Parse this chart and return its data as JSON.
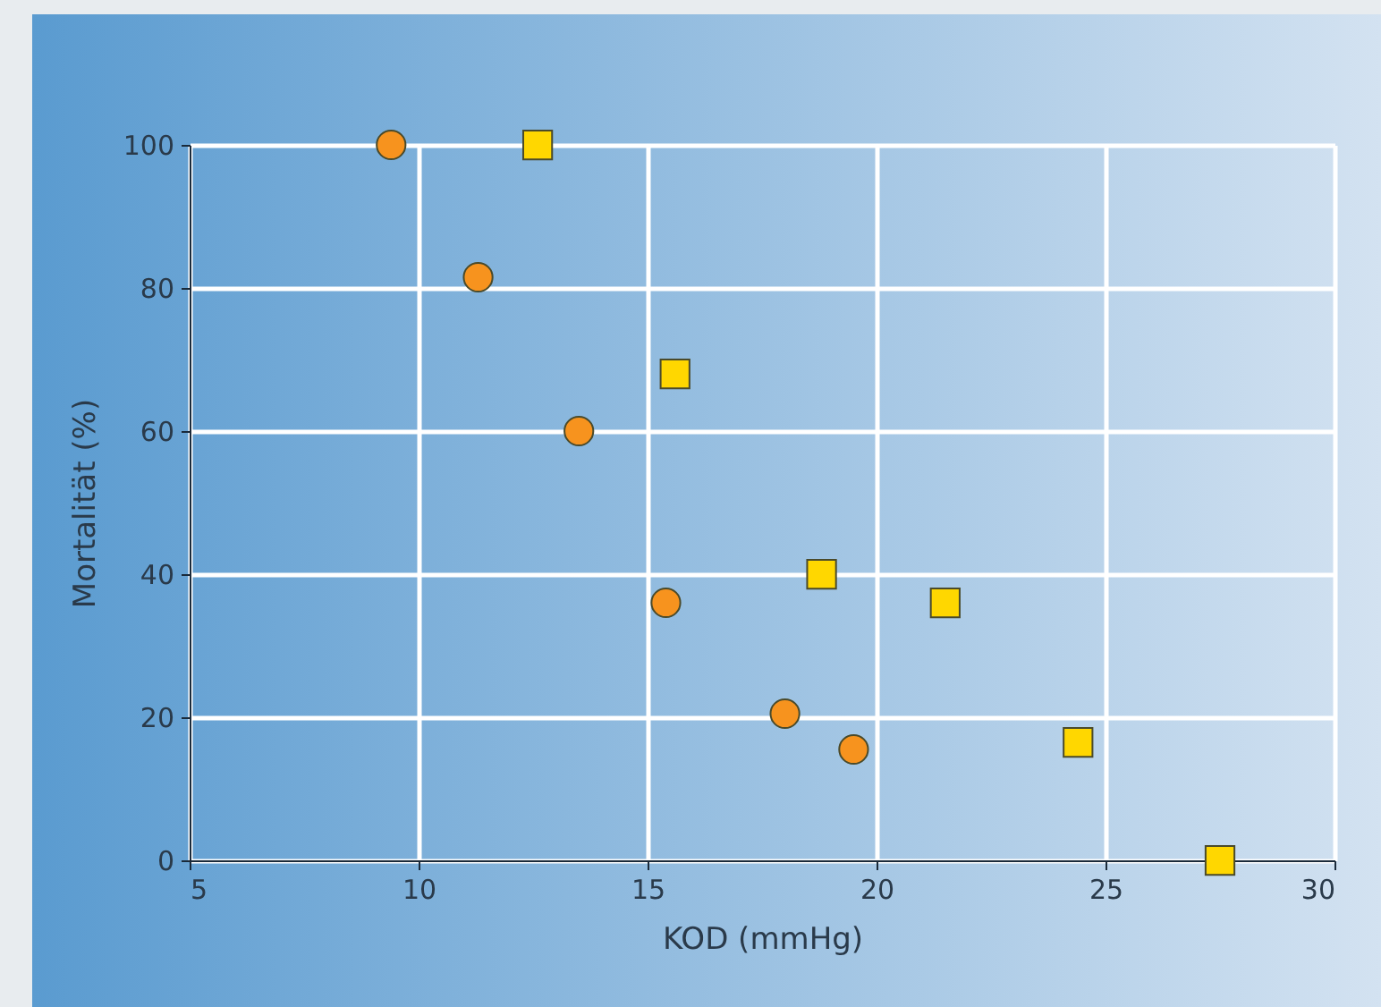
{
  "chart_data": {
    "type": "scatter",
    "xlabel": "KOD (mmHg)",
    "ylabel": "Mortalität (%)",
    "xlim": [
      5,
      30
    ],
    "xticks": [
      5,
      10,
      15,
      20,
      25,
      30
    ],
    "ylim": [
      0,
      100
    ],
    "yticks": [
      0,
      20,
      40,
      60,
      80,
      100
    ],
    "grid": true,
    "series": [
      {
        "color": "#f7931e",
        "marker": "circle",
        "x": [
          9.4,
          11.3,
          13.5,
          15.4,
          18.0,
          19.5
        ],
        "values": [
          100,
          81.5,
          60,
          36,
          20.5,
          15.5
        ]
      },
      {
        "color": "#ffd700",
        "marker": "square",
        "x": [
          12.6,
          15.6,
          18.8,
          21.5,
          24.4,
          27.5
        ],
        "values": [
          100,
          68,
          40,
          36,
          16.5,
          0
        ]
      }
    ]
  }
}
